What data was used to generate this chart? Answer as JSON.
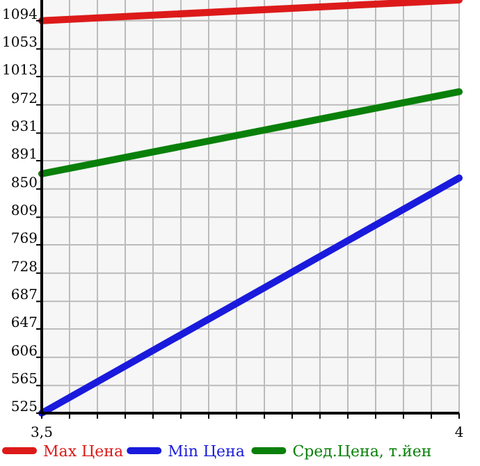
{
  "chart_data": {
    "type": "line",
    "x": [
      3.5,
      4
    ],
    "series": [
      {
        "name": "Max Цена",
        "color": "#dd1a1a",
        "values": [
          1094,
          1124
        ]
      },
      {
        "name": "Min Цена",
        "color": "#1a1add",
        "values": [
          525,
          866
        ]
      },
      {
        "name": "Сред.Цена, т.йен",
        "color": "#098009",
        "values": [
          872,
          991
        ]
      }
    ],
    "xlim": [
      3.5,
      4
    ],
    "xticks": [
      {
        "value": 3.5,
        "label": "3,5"
      },
      {
        "value": 3.5333,
        "label": null
      },
      {
        "value": 3.5667,
        "label": null
      },
      {
        "value": 3.6,
        "label": null
      },
      {
        "value": 3.6333,
        "label": null
      },
      {
        "value": 3.6667,
        "label": null
      },
      {
        "value": 3.7,
        "label": null
      },
      {
        "value": 3.7333,
        "label": null
      },
      {
        "value": 3.7667,
        "label": null
      },
      {
        "value": 3.8,
        "label": null
      },
      {
        "value": 3.8333,
        "label": null
      },
      {
        "value": 3.8667,
        "label": null
      },
      {
        "value": 3.9,
        "label": null
      },
      {
        "value": 3.9333,
        "label": null
      },
      {
        "value": 3.9667,
        "label": null
      },
      4
    ],
    "ylim": [
      525,
      1124
    ],
    "yticks": [
      525,
      565,
      606,
      647,
      687,
      728,
      769,
      809,
      850,
      891,
      931,
      972,
      1013,
      1053,
      1094
    ],
    "grid": true,
    "legend": "bottom",
    "marker": "none",
    "line_style": "solid"
  }
}
